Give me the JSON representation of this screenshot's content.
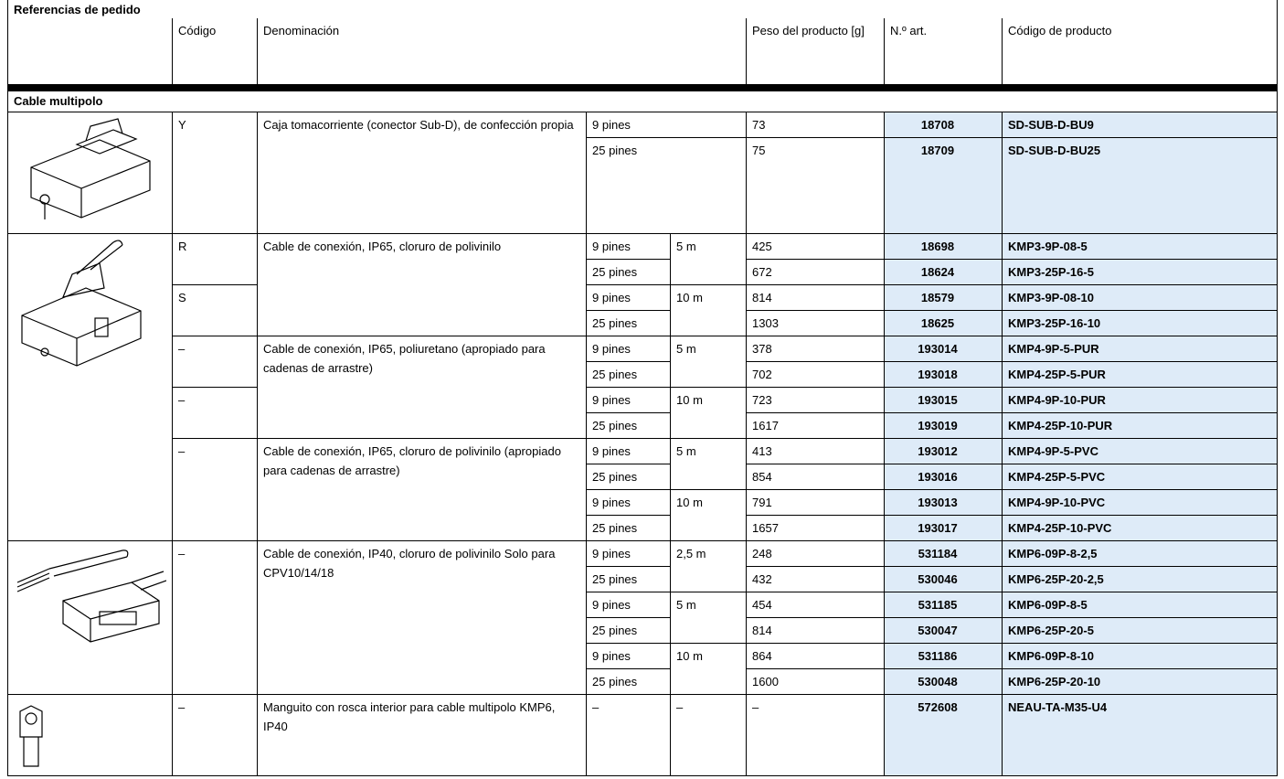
{
  "header": {
    "title": "Referencias de pedido",
    "columns": {
      "code": "Código",
      "description": "Denominación",
      "weight": "Peso del producto [g]",
      "art": "N.º art.",
      "product": "Código de producto"
    }
  },
  "section": "Cable multipolo",
  "blocks": [
    {
      "items": [
        {
          "description": "Caja tomacorriente (conector Sub-D), de confección propia",
          "codes": [
            {
              "code": "Y",
              "rows": [
                {
                  "pins": "9 pines",
                  "weight": 73,
                  "art": 18708,
                  "product": "SD-SUB-D-BU9"
                },
                {
                  "pins": "25 pines",
                  "weight": 75,
                  "art": 18709,
                  "product": "SD-SUB-D-BU25"
                }
              ]
            }
          ]
        }
      ]
    },
    {
      "items": [
        {
          "description": "Cable de conexión, IP65, cloruro de polivinilo",
          "codes": [
            {
              "code": "R",
              "lengths": [
                {
                  "length": "5 m",
                  "rows": [
                    {
                      "pins": "9 pines",
                      "weight": 425,
                      "art": 18698,
                      "product": "KMP3-9P-08-5"
                    },
                    {
                      "pins": "25 pines",
                      "weight": 672,
                      "art": 18624,
                      "product": "KMP3-25P-16-5"
                    }
                  ]
                }
              ]
            },
            {
              "code": "S",
              "lengths": [
                {
                  "length": "10 m",
                  "rows": [
                    {
                      "pins": "9 pines",
                      "weight": 814,
                      "art": 18579,
                      "product": "KMP3-9P-08-10"
                    },
                    {
                      "pins": "25 pines",
                      "weight": 1303,
                      "art": 18625,
                      "product": "KMP3-25P-16-10"
                    }
                  ]
                }
              ]
            }
          ]
        },
        {
          "description": "Cable de conexión, IP65, poliuretano (apropiado para cadenas de arrastre)",
          "codes": [
            {
              "code": "–",
              "lengths": [
                {
                  "length": "5 m",
                  "rows": [
                    {
                      "pins": "9 pines",
                      "weight": 378,
                      "art": 193014,
                      "product": "KMP4-9P-5-PUR"
                    },
                    {
                      "pins": "25 pines",
                      "weight": 702,
                      "art": 193018,
                      "product": "KMP4-25P-5-PUR"
                    }
                  ]
                }
              ]
            },
            {
              "code": "–",
              "lengths": [
                {
                  "length": "10 m",
                  "rows": [
                    {
                      "pins": "9 pines",
                      "weight": 723,
                      "art": 193015,
                      "product": "KMP4-9P-10-PUR"
                    },
                    {
                      "pins": "25 pines",
                      "weight": 1617,
                      "art": 193019,
                      "product": "KMP4-25P-10-PUR"
                    }
                  ]
                }
              ]
            }
          ]
        },
        {
          "description": "Cable de conexión, IP65, cloruro de polivinilo (apropiado para cadenas de arrastre)",
          "codes": [
            {
              "code": "–",
              "lengths": [
                {
                  "length": "5 m",
                  "rows": [
                    {
                      "pins": "9 pines",
                      "weight": 413,
                      "art": 193012,
                      "product": "KMP4-9P-5-PVC"
                    },
                    {
                      "pins": "25 pines",
                      "weight": 854,
                      "art": 193016,
                      "product": "KMP4-25P-5-PVC"
                    }
                  ]
                },
                {
                  "length": "10 m",
                  "rows": [
                    {
                      "pins": "9 pines",
                      "weight": 791,
                      "art": 193013,
                      "product": "KMP4-9P-10-PVC"
                    },
                    {
                      "pins": "25 pines",
                      "weight": 1657,
                      "art": 193017,
                      "product": "KMP4-25P-10-PVC"
                    }
                  ]
                }
              ]
            }
          ]
        }
      ]
    },
    {
      "items": [
        {
          "description": "Cable de conexión, IP40, cloruro de polivinilo Solo para CPV10/14/18",
          "codes": [
            {
              "code": "–",
              "lengths": [
                {
                  "length": "2,5 m",
                  "rows": [
                    {
                      "pins": "9 pines",
                      "weight": 248,
                      "art": 531184,
                      "product": "KMP6-09P-8-2,5"
                    },
                    {
                      "pins": "25 pines",
                      "weight": 432,
                      "art": 530046,
                      "product": "KMP6-25P-20-2,5"
                    }
                  ]
                },
                {
                  "length": "5 m",
                  "rows": [
                    {
                      "pins": "9 pines",
                      "weight": 454,
                      "art": 531185,
                      "product": "KMP6-09P-8-5"
                    },
                    {
                      "pins": "25 pines",
                      "weight": 814,
                      "art": 530047,
                      "product": "KMP6-25P-20-5"
                    }
                  ]
                },
                {
                  "length": "10 m",
                  "rows": [
                    {
                      "pins": "9 pines",
                      "weight": 864,
                      "art": 531186,
                      "product": "KMP6-09P-8-10"
                    },
                    {
                      "pins": "25 pines",
                      "weight": 1600,
                      "art": 530048,
                      "product": "KMP6-25P-20-10"
                    }
                  ]
                }
              ]
            }
          ]
        }
      ]
    },
    {
      "items": [
        {
          "description": "Manguito con rosca interior para cable multipolo KMP6, IP40",
          "codes": [
            {
              "code": "–",
              "lengths": [
                {
                  "length": "–",
                  "rows": [
                    {
                      "pins": "–",
                      "weight": "–",
                      "art": 572608,
                      "product": "NEAU-TA-M35-U4"
                    }
                  ]
                }
              ]
            }
          ]
        }
      ]
    }
  ]
}
